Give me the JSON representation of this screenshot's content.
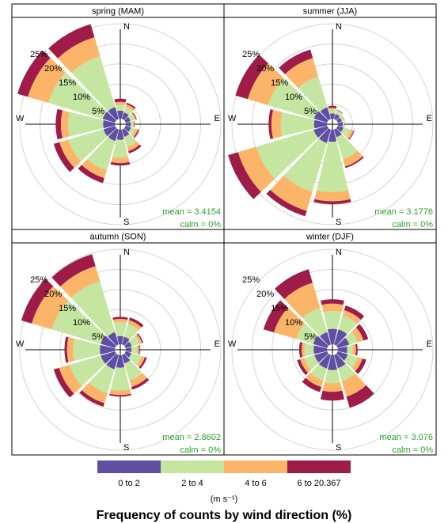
{
  "chart_data": {
    "type": "windrose",
    "title": "Frequency of counts by wind direction (%)",
    "units": "(m s⁻¹)",
    "directions_deg": [
      0,
      30,
      60,
      90,
      120,
      150,
      180,
      210,
      240,
      270,
      300,
      330
    ],
    "direction_labels": {
      "north": "N",
      "east": "E",
      "south": "S",
      "west": "W"
    },
    "ring_values": [
      5,
      10,
      15,
      20,
      25
    ],
    "ring_labels": [
      "5%",
      "10%",
      "15%",
      "20%",
      "25%"
    ],
    "bins": [
      {
        "label": "0 to 2",
        "color": "#5E4FA2"
      },
      {
        "label": "2 to 4",
        "color": "#C4E6A0"
      },
      {
        "label": "4 to 6",
        "color": "#FBB468"
      },
      {
        "label": "6 to 20.367",
        "color": "#9E1C47"
      }
    ],
    "panels": [
      {
        "title": "spring (MAM)",
        "mean": "mean = 3.4154",
        "calm": "calm = 0%",
        "cumulative": [
          [
            2,
            3.5,
            4.2,
            5.0
          ],
          [
            1.7,
            3.1,
            3.8,
            4.2
          ],
          [
            1.3,
            2.4,
            2.7,
            2.9
          ],
          [
            1.2,
            1.9,
            2.1,
            2.2
          ],
          [
            1.4,
            2.5,
            3.2,
            3.5
          ],
          [
            1.9,
            4.5,
            5.6,
            6.2
          ],
          [
            2.5,
            7.0,
            8.3,
            8.9
          ],
          [
            3.0,
            10.6,
            12.6,
            13.9
          ],
          [
            3.0,
            12.1,
            14.4,
            15.9
          ],
          [
            2.9,
            11.6,
            13.4,
            14.7
          ],
          [
            3.2,
            17.3,
            22.6,
            25.3
          ],
          [
            3.1,
            16.3,
            21.2,
            24.6
          ]
        ]
      },
      {
        "title": "summer (JJA)",
        "mean": "mean = 3.1776",
        "calm": "calm = 0%",
        "cumulative": [
          [
            1.3,
            2.3,
            2.7,
            3.2
          ],
          [
            1.3,
            2.2,
            2.3,
            2.4
          ],
          [
            1.1,
            1.7,
            1.8,
            1.85
          ],
          [
            1.2,
            1.6,
            1.65,
            1.7
          ],
          [
            1.5,
            3.4,
            4.1,
            4.3
          ],
          [
            2.0,
            7.7,
            9.6,
            10.0
          ],
          [
            3.0,
            15.5,
            17.8,
            18.5
          ],
          [
            3.5,
            16.2,
            21.1,
            22.5
          ],
          [
            3.5,
            18.4,
            23.1,
            25.7
          ],
          [
            3.2,
            11.5,
            13.8,
            14.5
          ],
          [
            3.4,
            15.3,
            20.6,
            23.8
          ],
          [
            3.0,
            11.0,
            15.8,
            18.0
          ]
        ]
      },
      {
        "title": "autumn (SON)",
        "mean": "mean = 2.8602",
        "calm": "calm = 0%",
        "cumulative": [
          [
            2.0,
            5.5,
            6.3,
            6.8
          ],
          [
            2.0,
            5.3,
            6.3,
            7.0
          ],
          [
            1.6,
            3.7,
            4.3,
            4.6
          ],
          [
            1.4,
            2.9,
            3.3,
            3.5
          ],
          [
            1.5,
            4.2,
            5.0,
            5.5
          ],
          [
            2.2,
            6.6,
            8.3,
            9.0
          ],
          [
            3.1,
            8.8,
            9.9,
            10.3
          ],
          [
            3.7,
            9.9,
            12.5,
            13.4
          ],
          [
            3.7,
            11.8,
            14.5,
            15.9
          ],
          [
            3.7,
            10.4,
            11.9,
            12.5
          ],
          [
            3.7,
            16.4,
            21.6,
            24.3
          ],
          [
            3.2,
            16.4,
            20.3,
            23.4
          ]
        ]
      },
      {
        "title": "winter (DJF)",
        "mean": "mean = 3.076",
        "calm": "calm = 0%",
        "cumulative": [
          [
            3.8,
            8.3,
            10.1,
            11.2
          ],
          [
            3.9,
            7.5,
            8.9,
            10.1
          ],
          [
            3.0,
            5.2,
            6.7,
            7.9
          ],
          [
            2.3,
            3.7,
            4.5,
            4.9
          ],
          [
            2.6,
            5.2,
            6.4,
            7.4
          ],
          [
            3.4,
            6.8,
            10.8,
            13.7
          ],
          [
            3.7,
            7.0,
            9.1,
            11.3
          ],
          [
            3.5,
            6.6,
            8.3,
            9.6
          ],
          [
            3.3,
            5.9,
            7.0,
            7.8
          ],
          [
            3.3,
            5.6,
            6.3,
            6.9
          ],
          [
            3.6,
            8.0,
            13.8,
            16.5
          ],
          [
            3.2,
            9.5,
            16.0,
            19.5
          ]
        ]
      }
    ]
  },
  "legend": {
    "labels": [
      "0 to 2",
      "2 to 4",
      "4 to 6",
      "6 to 20.367"
    ],
    "units_label": "(m s⁻¹)"
  }
}
